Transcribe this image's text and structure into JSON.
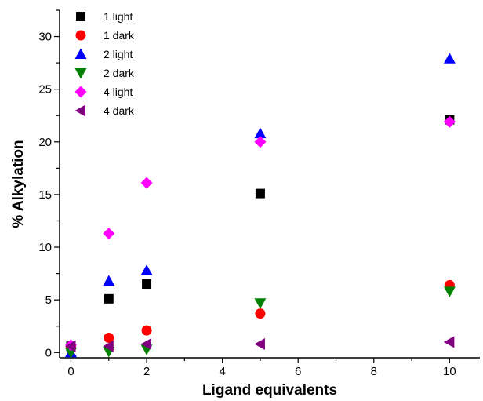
{
  "chart_data": {
    "type": "scatter",
    "xlabel": "Ligand equivalents",
    "ylabel": "% Alkylation",
    "xlim": [
      -0.3,
      10.8
    ],
    "ylim": [
      -0.5,
      32.5
    ],
    "xticks": [
      0,
      2,
      4,
      6,
      8,
      10
    ],
    "xtick_labels": [
      "0",
      "2",
      "4",
      "6",
      "8",
      "10"
    ],
    "yticks": [
      0,
      5,
      10,
      15,
      20,
      25,
      30
    ],
    "ytick_labels": [
      "0",
      "5",
      "10",
      "15",
      "20",
      "25",
      "30"
    ],
    "legend_position": "top-left",
    "series": [
      {
        "name": "1 light",
        "marker": "square",
        "color": "#000000",
        "points": [
          [
            0,
            0.6
          ],
          [
            1,
            5.1
          ],
          [
            2,
            6.5
          ],
          [
            5,
            15.1
          ],
          [
            10,
            22.1
          ]
        ]
      },
      {
        "name": "1 dark",
        "marker": "circle",
        "color": "#ff0000",
        "points": [
          [
            0,
            0.5
          ],
          [
            1,
            1.4
          ],
          [
            2,
            2.1
          ],
          [
            5,
            3.7
          ],
          [
            10,
            6.4
          ]
        ]
      },
      {
        "name": "2 light",
        "marker": "triangle-up",
        "color": "#0000ff",
        "points": [
          [
            0,
            0.0
          ],
          [
            1,
            6.8
          ],
          [
            2,
            7.8
          ],
          [
            5,
            20.8
          ],
          [
            10,
            27.9
          ]
        ]
      },
      {
        "name": "2 dark",
        "marker": "triangle-down",
        "color": "#008000",
        "points": [
          [
            0,
            0.0
          ],
          [
            1,
            0.1
          ],
          [
            2,
            0.3
          ],
          [
            5,
            4.7
          ],
          [
            10,
            5.8
          ]
        ]
      },
      {
        "name": "4 light",
        "marker": "diamond",
        "color": "#ff00ff",
        "points": [
          [
            0,
            0.7
          ],
          [
            1,
            11.3
          ],
          [
            2,
            16.1
          ],
          [
            5,
            20.0
          ],
          [
            10,
            21.9
          ]
        ]
      },
      {
        "name": "4 dark",
        "marker": "triangle-left",
        "color": "#800080",
        "points": [
          [
            0,
            0.6
          ],
          [
            1,
            0.6
          ],
          [
            2,
            0.8
          ],
          [
            5,
            0.8
          ],
          [
            10,
            1.0
          ]
        ]
      }
    ]
  }
}
